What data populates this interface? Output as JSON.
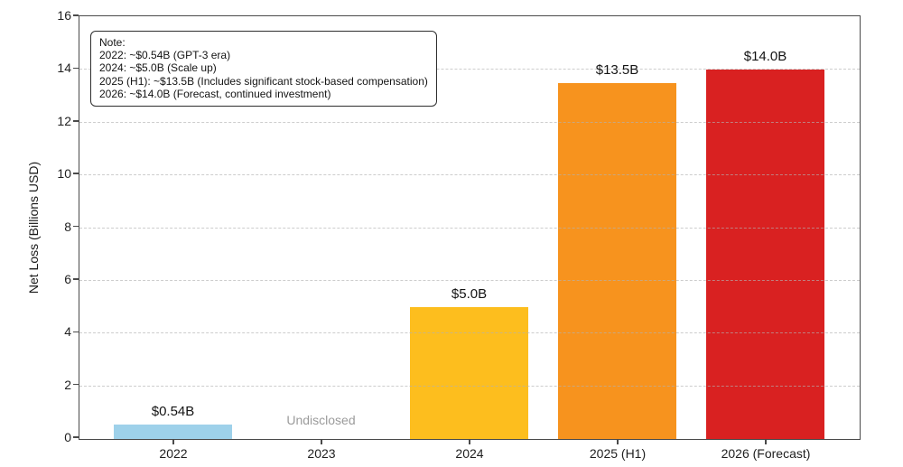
{
  "chart_data": {
    "type": "bar",
    "title": "",
    "xlabel": "",
    "ylabel": "Net Loss (Billions USD)",
    "ylim": [
      0,
      16
    ],
    "yticks": [
      0,
      2,
      4,
      6,
      8,
      10,
      12,
      14,
      16
    ],
    "grid": "horizontal-dashed",
    "legend": "none",
    "categories": [
      "2022",
      "2023",
      "2024",
      "2025 (H1)",
      "2026 (Forecast)"
    ],
    "values": [
      0.54,
      null,
      5.0,
      13.5,
      14.0
    ],
    "bar_labels": [
      "$0.54B",
      "Undisclosed",
      "$5.0B",
      "$13.5B",
      "$14.0B"
    ],
    "bar_colors": [
      "#9ed1ea",
      null,
      "#fdbe1e",
      "#f7931e",
      "#d92121"
    ],
    "missing_value_label": "Undisclosed",
    "missing_label_color": "#9b9b9b",
    "colors": {
      "spine": "#4a4a4a",
      "grid": "#b2b2b2",
      "tick_label": "#1f1f1f",
      "data_label": "#141414"
    },
    "note": {
      "lines": [
        "Note:",
        "2022: ~$0.54B (GPT-3 era)",
        "2024: ~$5.0B (Scale up)",
        "2025 (H1): ~$13.5B (Includes significant stock-based compensation)",
        "2026: ~$14.0B (Forecast, continued investment)"
      ]
    }
  }
}
